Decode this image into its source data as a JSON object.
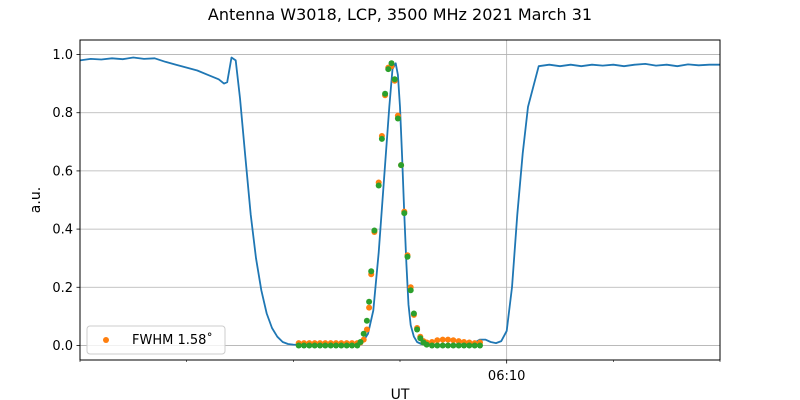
{
  "chart_data": {
    "type": "line",
    "title": "Antenna W3018, LCP, 3500 MHz 2021 March 31",
    "xlabel": "UT",
    "ylabel": "a.u.",
    "xlim": [
      0,
      60
    ],
    "ylim": [
      -0.05,
      1.05
    ],
    "yticks": [
      0.0,
      0.2,
      0.4,
      0.6,
      0.8,
      1.0
    ],
    "ytick_labels": [
      "0.0",
      "0.2",
      "0.4",
      "0.6",
      "0.8",
      "1.0"
    ],
    "xtick_major": [
      {
        "x": 40,
        "label": "06:10"
      }
    ],
    "xtick_minor": [
      0,
      10,
      20,
      30,
      50,
      60
    ],
    "grid": true,
    "legend": {
      "placement": "lower-left",
      "label": "FWHM 1.58$^\\circ$",
      "display": "FWHM 1.58˚"
    },
    "series": [
      {
        "kind": "line",
        "color": "#1f77b4",
        "x": [
          0,
          1,
          2,
          3,
          4,
          5,
          6,
          7,
          8,
          9,
          10,
          11,
          12,
          13,
          13.5,
          13.8,
          14.2,
          14.6,
          15.0,
          15.5,
          16.0,
          16.5,
          17.0,
          17.5,
          18.0,
          18.5,
          19.0,
          19.5,
          20.0,
          21,
          22,
          23,
          24,
          25,
          26,
          26.5,
          27.0,
          27.5,
          28.0,
          28.5,
          29.0,
          29.3,
          29.6,
          29.8,
          30.0,
          30.2,
          30.4,
          30.6,
          30.8,
          31.0,
          31.3,
          31.6,
          32.0,
          32.5,
          33.0,
          33.5,
          34,
          35,
          36,
          36.5,
          37,
          37.5,
          38,
          38.5,
          39,
          39.5,
          40,
          40.5,
          41,
          41.5,
          42,
          43,
          44,
          45,
          46,
          47,
          48,
          49,
          50,
          51,
          52,
          53,
          54,
          55,
          56,
          57,
          58,
          59,
          60
        ],
        "y": [
          0.98,
          0.985,
          0.983,
          0.987,
          0.984,
          0.99,
          0.985,
          0.987,
          0.975,
          0.965,
          0.955,
          0.945,
          0.93,
          0.915,
          0.9,
          0.905,
          0.99,
          0.98,
          0.85,
          0.65,
          0.45,
          0.3,
          0.19,
          0.11,
          0.06,
          0.03,
          0.012,
          0.005,
          0.003,
          0.002,
          0.002,
          0.002,
          0.003,
          0.003,
          0.005,
          0.012,
          0.04,
          0.12,
          0.32,
          0.57,
          0.82,
          0.95,
          0.97,
          0.93,
          0.82,
          0.65,
          0.45,
          0.28,
          0.14,
          0.07,
          0.03,
          0.012,
          0.005,
          0.003,
          0.003,
          0.002,
          0.002,
          0.003,
          0.004,
          0.005,
          0.01,
          0.02,
          0.02,
          0.012,
          0.008,
          0.015,
          0.05,
          0.2,
          0.45,
          0.66,
          0.82,
          0.96,
          0.965,
          0.96,
          0.965,
          0.96,
          0.965,
          0.962,
          0.965,
          0.96,
          0.965,
          0.968,
          0.962,
          0.965,
          0.96,
          0.966,
          0.963,
          0.965,
          0.965
        ]
      },
      {
        "kind": "scatter",
        "color": "#ff7f0e",
        "x": [
          20.5,
          21,
          21.5,
          22,
          22.5,
          23,
          23.5,
          24,
          24.5,
          25,
          25.5,
          26,
          26.3,
          26.6,
          26.9,
          27.1,
          27.3,
          27.6,
          28.0,
          28.3,
          28.6,
          28.9,
          29.2,
          29.5,
          29.8,
          30.1,
          30.4,
          30.7,
          31.0,
          31.3,
          31.6,
          31.9,
          32.2,
          32.5,
          33,
          33.5,
          34,
          34.5,
          35,
          35.5,
          36,
          36.5,
          37,
          37.5
        ],
        "y": [
          0.008,
          0.008,
          0.008,
          0.008,
          0.008,
          0.008,
          0.008,
          0.008,
          0.008,
          0.008,
          0.008,
          0.008,
          0.01,
          0.02,
          0.055,
          0.13,
          0.245,
          0.39,
          0.56,
          0.72,
          0.86,
          0.955,
          0.96,
          0.91,
          0.79,
          0.62,
          0.46,
          0.31,
          0.2,
          0.105,
          0.06,
          0.03,
          0.015,
          0.01,
          0.012,
          0.018,
          0.02,
          0.02,
          0.018,
          0.015,
          0.012,
          0.01,
          0.008,
          0.01
        ]
      },
      {
        "kind": "scatter",
        "color": "#2ca02c",
        "x": [
          20.5,
          21,
          21.5,
          22,
          22.5,
          23,
          23.5,
          24,
          24.5,
          25,
          25.5,
          26,
          26.3,
          26.6,
          26.9,
          27.1,
          27.3,
          27.6,
          28.0,
          28.3,
          28.6,
          28.9,
          29.2,
          29.5,
          29.8,
          30.1,
          30.4,
          30.7,
          31.0,
          31.3,
          31.6,
          31.9,
          32.2,
          32.5,
          33,
          33.5,
          34,
          34.5,
          35,
          35.5,
          36,
          36.5,
          37,
          37.5
        ],
        "y": [
          0.0,
          0.0,
          0.0,
          0.0,
          0.0,
          0.0,
          0.0,
          0.0,
          0.0,
          0.0,
          0.0,
          0.0,
          0.012,
          0.04,
          0.085,
          0.15,
          0.255,
          0.395,
          0.55,
          0.71,
          0.865,
          0.95,
          0.97,
          0.915,
          0.78,
          0.62,
          0.455,
          0.305,
          0.19,
          0.11,
          0.055,
          0.025,
          0.01,
          0.003,
          0.0,
          0.0,
          0.0,
          0.0,
          0.0,
          0.0,
          0.0,
          0.0,
          0.0,
          0.0
        ]
      }
    ]
  }
}
